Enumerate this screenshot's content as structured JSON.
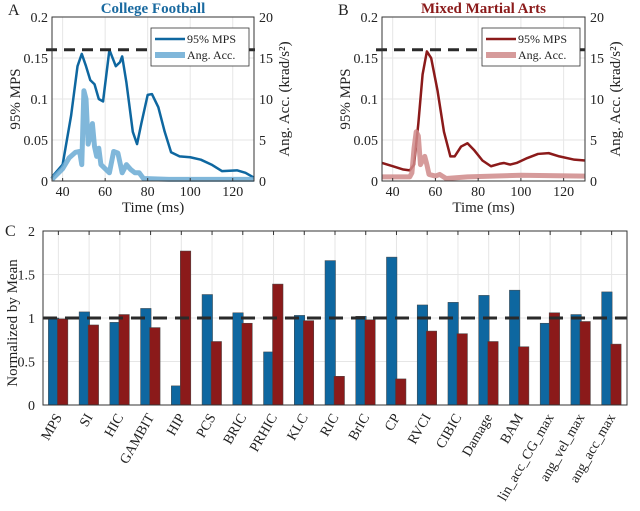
{
  "chart_data": [
    {
      "panel_label": "A",
      "type": "line",
      "title": "College Football",
      "title_color": "#1a6aa0",
      "xlabel": "Time (ms)",
      "ylabel": "95% MPS",
      "y2label": "Ang. Acc. (krad/s²)",
      "xlim": [
        35,
        130
      ],
      "ylim": [
        0,
        0.2
      ],
      "y2lim": [
        0,
        20
      ],
      "xticks": [
        40,
        60,
        80,
        100,
        120
      ],
      "yticks": [
        "0",
        "0.05",
        "0.1",
        "0.15",
        "0.2"
      ],
      "y2ticks": [
        "0",
        "5",
        "10",
        "15",
        "20"
      ],
      "threshold": 0.16,
      "grid": true,
      "legend_position": "top-right",
      "series": [
        {
          "name": "95% MPS",
          "axis": "left",
          "color": "#0e67a0",
          "x": [
            35,
            40,
            44,
            47,
            49,
            51,
            53,
            55,
            57,
            59,
            62,
            65,
            67,
            68,
            70,
            73,
            75,
            77,
            80,
            82,
            85,
            88,
            91,
            95,
            100,
            105,
            110,
            115,
            122,
            126,
            130
          ],
          "y": [
            0.005,
            0.02,
            0.08,
            0.14,
            0.155,
            0.14,
            0.123,
            0.118,
            0.1,
            0.097,
            0.16,
            0.14,
            0.145,
            0.152,
            0.12,
            0.06,
            0.045,
            0.07,
            0.105,
            0.106,
            0.09,
            0.06,
            0.035,
            0.03,
            0.029,
            0.026,
            0.02,
            0.012,
            0.013,
            0.01,
            0.004
          ]
        },
        {
          "name": "Ang. Acc.",
          "axis": "right",
          "color": "#6aaad4",
          "x": [
            35,
            40,
            43,
            46,
            48,
            49,
            50,
            51,
            52,
            53,
            54,
            55,
            56,
            57,
            58,
            60,
            62,
            64,
            66,
            68,
            70,
            72,
            74,
            76,
            78,
            90,
            130
          ],
          "y": [
            0.2,
            1.5,
            2.8,
            3.5,
            3.6,
            2.0,
            11,
            10,
            4.5,
            5.5,
            7,
            4.2,
            3,
            4,
            2,
            1.5,
            1,
            3.6,
            3.4,
            1,
            2,
            1.4,
            1,
            1,
            0.3,
            0.2,
            0.2
          ]
        }
      ]
    },
    {
      "panel_label": "B",
      "type": "line",
      "title": "Mixed Martial Arts",
      "title_color": "#8b1a1a",
      "xlabel": "Time (ms)",
      "ylabel": "95% MPS",
      "y2label": "Ang. Acc. (krad/s²)",
      "xlim": [
        35,
        130
      ],
      "ylim": [
        0,
        0.2
      ],
      "y2lim": [
        0,
        20
      ],
      "xticks": [
        40,
        60,
        80,
        100,
        120
      ],
      "yticks": [
        "0",
        "0.05",
        "0.1",
        "0.15",
        "0.2"
      ],
      "y2ticks": [
        "0",
        "5",
        "10",
        "15",
        "20"
      ],
      "threshold": 0.16,
      "grid": true,
      "legend_position": "top-right",
      "series": [
        {
          "name": "95% MPS",
          "axis": "left",
          "color": "#8b1a1a",
          "x": [
            35,
            40,
            45,
            48,
            50,
            52,
            54,
            56,
            58,
            61,
            64,
            67,
            69,
            72,
            75,
            78,
            82,
            86,
            90,
            92,
            95,
            98,
            103,
            108,
            113,
            118,
            125,
            130
          ],
          "y": [
            0.022,
            0.018,
            0.014,
            0.013,
            0.02,
            0.07,
            0.13,
            0.158,
            0.15,
            0.11,
            0.06,
            0.03,
            0.03,
            0.042,
            0.046,
            0.038,
            0.025,
            0.018,
            0.021,
            0.022,
            0.02,
            0.022,
            0.028,
            0.033,
            0.034,
            0.03,
            0.026,
            0.025
          ]
        },
        {
          "name": "Ang. Acc.",
          "axis": "right",
          "color": "#cf8a8a",
          "x": [
            35,
            48,
            49,
            50,
            51,
            52,
            53,
            54,
            55,
            56,
            57,
            60,
            62,
            65,
            75,
            100,
            130
          ],
          "y": [
            0.5,
            0.5,
            1,
            4,
            6,
            5.5,
            2,
            2.5,
            3,
            2,
            0.8,
            0.6,
            0.8,
            0.3,
            0.5,
            0.7,
            0.6
          ]
        }
      ]
    },
    {
      "panel_label": "C",
      "type": "bar",
      "ylabel": "Normalized by Mean",
      "ylim": [
        0,
        2
      ],
      "yticks": [
        "0",
        "0.5",
        "1",
        "1.5",
        "2"
      ],
      "threshold": 1,
      "grid": true,
      "categories": [
        "MPS",
        "SI",
        "HIC",
        "GAMBIT",
        "HIP",
        "PCS",
        "BRIC",
        "PRHIC",
        "KLC",
        "RIC",
        "BrIC",
        "CP",
        "RVCI",
        "CIBIC",
        "Damage",
        "BAM",
        "lin_acc_CG_max",
        "ang_vel_max",
        "ang_acc_max"
      ],
      "series": [
        {
          "color": "#0e67a0",
          "values": [
            1.0,
            1.07,
            0.95,
            1.11,
            0.22,
            1.27,
            1.06,
            0.61,
            1.03,
            1.66,
            1.02,
            1.7,
            1.15,
            1.18,
            1.26,
            1.32,
            0.94,
            1.04,
            1.3
          ]
        },
        {
          "color": "#8b1a1a",
          "values": [
            0.99,
            0.92,
            1.04,
            0.89,
            1.77,
            0.73,
            0.94,
            1.39,
            0.97,
            0.33,
            0.98,
            0.3,
            0.85,
            0.82,
            0.73,
            0.67,
            1.06,
            0.96,
            0.7
          ]
        }
      ]
    }
  ]
}
